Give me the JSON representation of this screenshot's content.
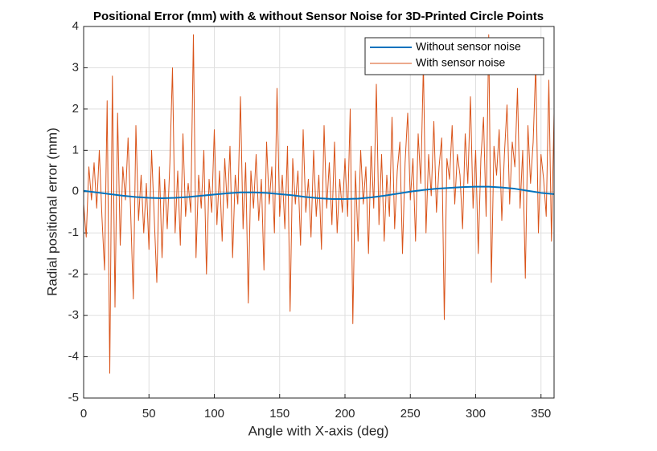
{
  "chart_data": {
    "type": "line",
    "title": "Positional Error (mm) with & without Sensor Noise for 3D-Printed Circle Points",
    "x_label": "Angle with X-axis (deg)",
    "y_label": "Radial positional error (mm)",
    "xlim": [
      0,
      360
    ],
    "xticks": [
      0,
      50,
      100,
      150,
      200,
      250,
      300,
      350
    ],
    "ylim": [
      -5,
      4
    ],
    "yticks": [
      -5,
      -4,
      -3,
      -2,
      -1,
      0,
      1,
      2,
      3,
      4
    ],
    "grid": true,
    "legend": "northeast",
    "series": [
      {
        "name": "Without sensor noise",
        "color": "#0072bd",
        "width": 2,
        "x": [
          0,
          10,
          20,
          30,
          40,
          50,
          60,
          70,
          80,
          90,
          100,
          110,
          120,
          130,
          140,
          150,
          160,
          170,
          180,
          190,
          200,
          210,
          220,
          230,
          240,
          250,
          260,
          270,
          280,
          290,
          300,
          310,
          320,
          330,
          340,
          350,
          360
        ],
        "values": [
          0.02,
          -0.02,
          -0.06,
          -0.1,
          -0.13,
          -0.15,
          -0.16,
          -0.15,
          -0.13,
          -0.1,
          -0.07,
          -0.04,
          -0.02,
          -0.02,
          -0.03,
          -0.06,
          -0.09,
          -0.13,
          -0.16,
          -0.18,
          -0.18,
          -0.17,
          -0.14,
          -0.1,
          -0.05,
          0,
          0.04,
          0.07,
          0.09,
          0.11,
          0.12,
          0.12,
          0.1,
          0.07,
          0.02,
          -0.03,
          -0.06
        ]
      },
      {
        "name": "With sensor noise",
        "color": "#d95319",
        "width": 1,
        "x": [
          0,
          2,
          4,
          6,
          8,
          10,
          12,
          14,
          16,
          18,
          20,
          22,
          24,
          26,
          28,
          30,
          32,
          34,
          36,
          38,
          40,
          42,
          44,
          46,
          48,
          50,
          52,
          54,
          56,
          58,
          60,
          62,
          64,
          66,
          68,
          70,
          72,
          74,
          76,
          78,
          80,
          82,
          84,
          86,
          88,
          90,
          92,
          94,
          96,
          98,
          100,
          102,
          104,
          106,
          108,
          110,
          112,
          114,
          116,
          118,
          120,
          122,
          124,
          126,
          128,
          130,
          132,
          134,
          136,
          138,
          140,
          142,
          144,
          146,
          148,
          150,
          152,
          154,
          156,
          158,
          160,
          162,
          164,
          166,
          168,
          170,
          172,
          174,
          176,
          178,
          180,
          182,
          184,
          186,
          188,
          190,
          192,
          194,
          196,
          198,
          200,
          202,
          204,
          206,
          208,
          210,
          212,
          214,
          216,
          218,
          220,
          222,
          224,
          226,
          228,
          230,
          232,
          234,
          236,
          238,
          240,
          242,
          244,
          246,
          248,
          250,
          252,
          254,
          256,
          258,
          260,
          262,
          264,
          266,
          268,
          270,
          272,
          274,
          276,
          278,
          280,
          282,
          284,
          286,
          288,
          290,
          292,
          294,
          296,
          298,
          300,
          302,
          304,
          306,
          308,
          310,
          312,
          314,
          316,
          318,
          320,
          322,
          324,
          326,
          328,
          330,
          332,
          334,
          336,
          338,
          340,
          342,
          344,
          346,
          348,
          350,
          352,
          354,
          356,
          358,
          360
        ],
        "values": [
          -0.3,
          -1.1,
          0.6,
          -0.2,
          0.7,
          -0.4,
          1.0,
          -0.6,
          -1.9,
          2.2,
          -4.4,
          2.8,
          -2.8,
          1.9,
          -1.3,
          0.6,
          -0.2,
          1.3,
          -0.5,
          -2.6,
          1.6,
          -0.7,
          0.4,
          -1.0,
          0.2,
          -1.4,
          1.0,
          -0.6,
          -2.2,
          0.6,
          -1.6,
          0.3,
          -0.9,
          0.7,
          3.0,
          -1.0,
          0.5,
          -1.3,
          1.4,
          -0.6,
          0.2,
          -0.5,
          3.8,
          -1.6,
          0.4,
          -0.4,
          1.0,
          -2.0,
          0.3,
          -0.5,
          1.5,
          -0.8,
          0.5,
          -1.2,
          0.8,
          -0.4,
          1.1,
          -1.6,
          0.4,
          -0.3,
          2.3,
          -0.9,
          0.7,
          -2.7,
          0.5,
          -0.4,
          0.9,
          -0.7,
          0.3,
          -1.9,
          1.2,
          -0.3,
          0.6,
          -1.0,
          2.5,
          -0.6,
          0.4,
          -0.9,
          1.1,
          -2.9,
          0.8,
          -0.3,
          0.5,
          -1.3,
          1.5,
          -0.5,
          0.3,
          -1.1,
          1.0,
          -0.6,
          0.4,
          -1.4,
          1.6,
          -0.4,
          0.7,
          -0.8,
          1.2,
          -1.0,
          0.3,
          -0.5,
          0.8,
          -0.6,
          2.0,
          -3.2,
          0.5,
          -1.2,
          1.0,
          -0.3,
          0.6,
          -1.5,
          1.1,
          -0.4,
          2.6,
          -0.8,
          0.9,
          -1.2,
          0.4,
          -0.6,
          1.8,
          -0.9,
          0.5,
          1.2,
          -1.5,
          0.7,
          1.9,
          -0.2,
          0.8,
          -1.2,
          1.4,
          0.2,
          3.1,
          -1.0,
          0.9,
          -0.1,
          1.7,
          -0.5,
          0.6,
          1.3,
          -3.1,
          0.8,
          0.3,
          1.6,
          -0.3,
          0.9,
          0.4,
          -0.9,
          1.4,
          0.2,
          2.3,
          -0.4,
          1.0,
          -1.5,
          0.8,
          1.8,
          -0.6,
          3.8,
          -2.2,
          1.1,
          0.4,
          1.5,
          -0.7,
          0.9,
          2.1,
          -0.3,
          1.2,
          0.6,
          2.5,
          -0.4,
          1.0,
          -2.1,
          1.6,
          0.2,
          1.2,
          3.1,
          -1.0,
          0.9,
          0.3,
          -0.6,
          2.7,
          -1.2,
          1.9
        ]
      }
    ]
  }
}
